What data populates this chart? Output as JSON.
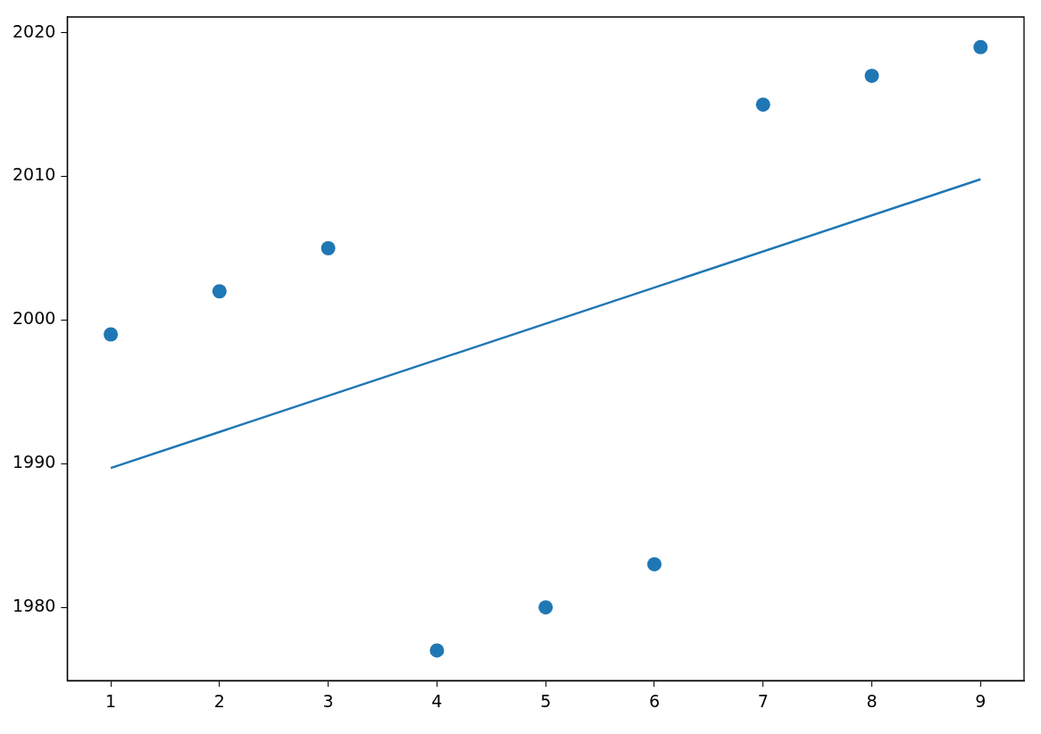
{
  "chart_data": {
    "type": "scatter",
    "x": [
      1,
      2,
      3,
      4,
      5,
      6,
      7,
      8,
      9
    ],
    "series": [
      {
        "color": "#1f77b4",
        "marker": "circle",
        "values": [
          1999,
          2002,
          2005,
          1977,
          1980,
          1983,
          2015,
          2017,
          2019
        ]
      },
      {
        "type": "line",
        "color": "#1f77b4",
        "marker": "none",
        "x": [
          1,
          9
        ],
        "values": [
          1989.7,
          2009.8
        ]
      }
    ],
    "xlim": [
      0.6,
      9.4
    ],
    "xticks": [
      1,
      2,
      3,
      4,
      5,
      6,
      7,
      8,
      9
    ],
    "ylim": [
      1974.9,
      2021.1
    ],
    "yticks": [
      1980,
      1990,
      2000,
      2010,
      2020
    ],
    "grid": false,
    "legend": false,
    "line_style": "solid"
  }
}
